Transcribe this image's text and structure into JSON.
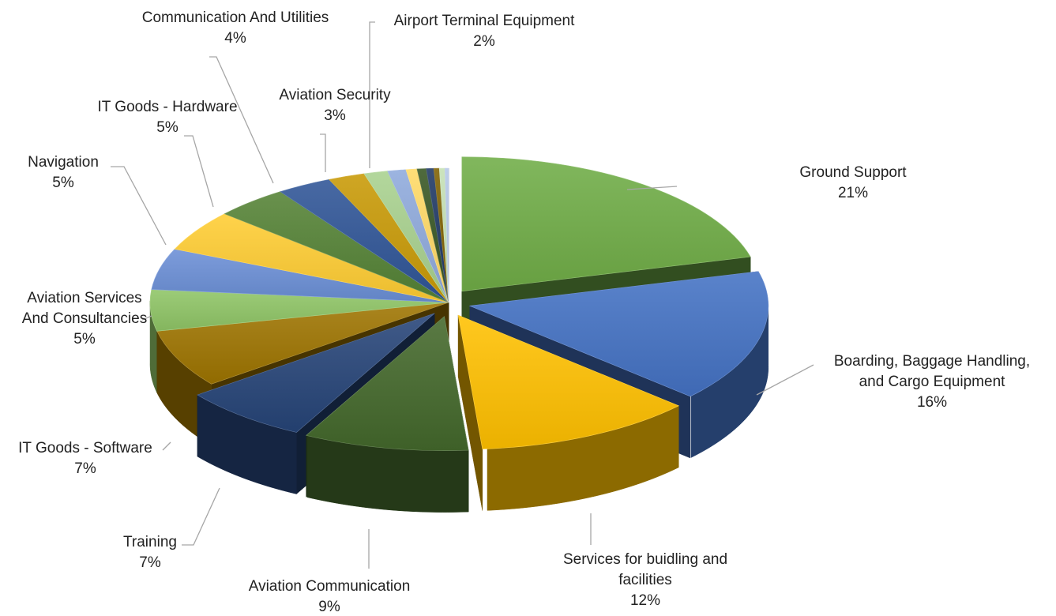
{
  "chart_data": {
    "type": "pie",
    "style": "3d-exploded",
    "title": "",
    "legend": "none",
    "slices": [
      {
        "label": "Ground Support",
        "lines": [
          "Ground Support"
        ],
        "value": 21,
        "display": "21%",
        "color": "#70ad47"
      },
      {
        "label": "Boarding, Baggage Handling, and Cargo Equipment",
        "lines": [
          "Boarding, Baggage Handling,",
          "and Cargo Equipment"
        ],
        "value": 16,
        "display": "16%",
        "color": "#4472c4"
      },
      {
        "label": "Services for buidling and facilities",
        "lines": [
          "Services for buidling and",
          "facilities"
        ],
        "value": 12,
        "display": "12%",
        "color": "#ffc000"
      },
      {
        "label": "Aviation Communication",
        "lines": [
          "Aviation Communication"
        ],
        "value": 9,
        "display": "9%",
        "color": "#43682b"
      },
      {
        "label": "Training",
        "lines": [
          "Training"
        ],
        "value": 7,
        "display": "7%",
        "color": "#264478"
      },
      {
        "label": "IT Goods - Software",
        "lines": [
          "IT Goods - Software"
        ],
        "value": 7,
        "display": "7%",
        "color": "#9e7400"
      },
      {
        "label": "Aviation Services And Consultancies",
        "lines": [
          "Aviation Services",
          "And Consultancies"
        ],
        "value": 5,
        "display": "5%",
        "color": "#8fc566"
      },
      {
        "label": "Navigation",
        "lines": [
          "Navigation"
        ],
        "value": 5,
        "display": "5%",
        "color": "#6b8fd6"
      },
      {
        "label": "IT Goods - Hardware",
        "lines": [
          "IT Goods - Hardware"
        ],
        "value": 5,
        "display": "5%",
        "color": "#ffcd33"
      },
      {
        "label": "Communication And Utilities",
        "lines": [
          "Communication And Utilities"
        ],
        "value": 4,
        "display": "4%",
        "color": "#548235"
      },
      {
        "label": "Aviation Security",
        "lines": [
          "Aviation Security"
        ],
        "value": 3,
        "display": "3%",
        "color": "#2f5597"
      },
      {
        "label": "Airport Terminal Equipment",
        "lines": [
          "Airport Terminal Equipment"
        ],
        "value": 2,
        "display": "2%",
        "color": "#c99a06"
      },
      {
        "label": "",
        "lines": [],
        "value": 1.3,
        "display": "",
        "color": "#a9d18e"
      },
      {
        "label": "",
        "lines": [],
        "value": 1.0,
        "display": "",
        "color": "#8faadc"
      },
      {
        "label": "",
        "lines": [],
        "value": 0.6,
        "display": "",
        "color": "#ffd966"
      },
      {
        "label": "",
        "lines": [],
        "value": 0.5,
        "display": "",
        "color": "#375623"
      },
      {
        "label": "",
        "lines": [],
        "value": 0.4,
        "display": "",
        "color": "#1f3864"
      },
      {
        "label": "",
        "lines": [],
        "value": 0.3,
        "display": "",
        "color": "#7f6000"
      },
      {
        "label": "",
        "lines": [],
        "value": 0.3,
        "display": "",
        "color": "#c5e0b4"
      },
      {
        "label": "",
        "lines": [],
        "value": 0.2,
        "display": "",
        "color": "#b4c7e7"
      }
    ]
  }
}
